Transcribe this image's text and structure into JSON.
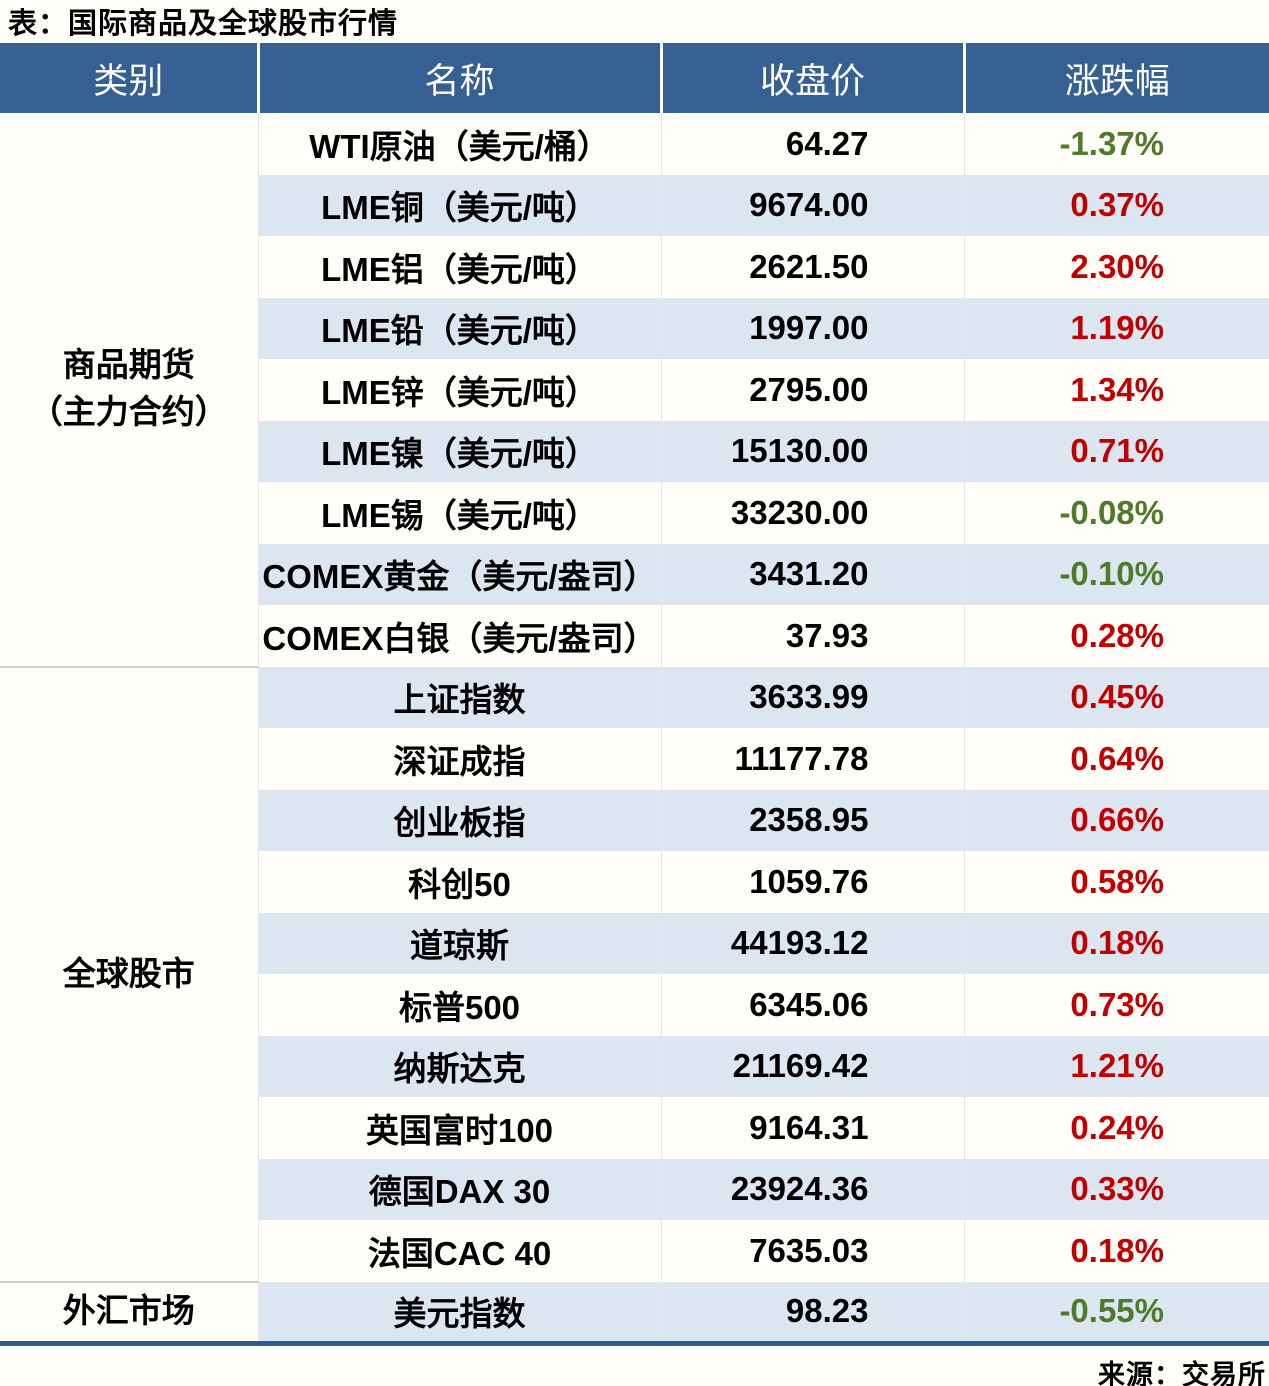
{
  "page": {
    "title": "表：国际商品及全球股市行情",
    "source": "来源：交易所"
  },
  "colors": {
    "header_bg": "#376092",
    "header_text": "#ffffff",
    "stripe_blue": "#dce6f1",
    "row_white": "#fffef8",
    "positive_red": "#c00000",
    "negative_green": "#4f7a28",
    "bottom_border_blue": "#2e5c8a"
  },
  "table": {
    "columns": [
      "类别",
      "名称",
      "收盘价",
      "涨跌幅"
    ],
    "groups": [
      {
        "category": "商品期货\n（主力合约）",
        "rows": [
          {
            "name": "WTI原油（美元/桶）",
            "close": "64.27",
            "change": "-1.37%"
          },
          {
            "name": "LME铜（美元/吨）",
            "close": "9674.00",
            "change": "0.37%"
          },
          {
            "name": "LME铝（美元/吨）",
            "close": "2621.50",
            "change": "2.30%"
          },
          {
            "name": "LME铅（美元/吨）",
            "close": "1997.00",
            "change": "1.19%"
          },
          {
            "name": "LME锌（美元/吨）",
            "close": "2795.00",
            "change": "1.34%"
          },
          {
            "name": "LME镍（美元/吨）",
            "close": "15130.00",
            "change": "0.71%"
          },
          {
            "name": "LME锡（美元/吨）",
            "close": "33230.00",
            "change": "-0.08%"
          },
          {
            "name": "COMEX黄金（美元/盎司）",
            "close": "3431.20",
            "change": "-0.10%"
          },
          {
            "name": "COMEX白银（美元/盎司）",
            "close": "37.93",
            "change": "0.28%"
          }
        ]
      },
      {
        "category": "全球股市",
        "rows": [
          {
            "name": "上证指数",
            "close": "3633.99",
            "change": "0.45%"
          },
          {
            "name": "深证成指",
            "close": "11177.78",
            "change": "0.64%"
          },
          {
            "name": "创业板指",
            "close": "2358.95",
            "change": "0.66%"
          },
          {
            "name": "科创50",
            "close": "1059.76",
            "change": "0.58%"
          },
          {
            "name": "道琼斯",
            "close": "44193.12",
            "change": "0.18%"
          },
          {
            "name": "标普500",
            "close": "6345.06",
            "change": "0.73%"
          },
          {
            "name": "纳斯达克",
            "close": "21169.42",
            "change": "1.21%"
          },
          {
            "name": "英国富时100",
            "close": "9164.31",
            "change": "0.24%"
          },
          {
            "name": "德国DAX 30",
            "close": "23924.36",
            "change": "0.33%"
          },
          {
            "name": "法国CAC 40",
            "close": "7635.03",
            "change": "0.18%"
          }
        ]
      },
      {
        "category": "外汇市场",
        "rows": [
          {
            "name": "美元指数",
            "close": "98.23",
            "change": "-0.55%"
          }
        ]
      }
    ]
  }
}
